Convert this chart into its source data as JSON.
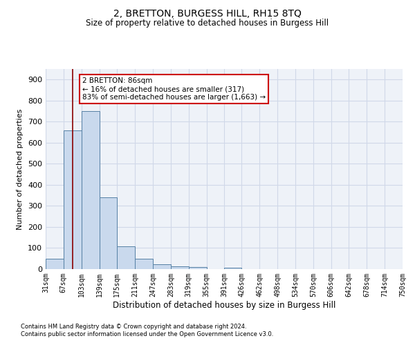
{
  "title": "2, BRETTON, BURGESS HILL, RH15 8TQ",
  "subtitle": "Size of property relative to detached houses in Burgess Hill",
  "xlabel": "Distribution of detached houses by size in Burgess Hill",
  "ylabel": "Number of detached properties",
  "footnote1": "Contains HM Land Registry data © Crown copyright and database right 2024.",
  "footnote2": "Contains public sector information licensed under the Open Government Licence v3.0.",
  "bar_edges": [
    31,
    67,
    103,
    139,
    175,
    211,
    247,
    283,
    319,
    355,
    391,
    426,
    462,
    498,
    534,
    570,
    606,
    642,
    678,
    714,
    750
  ],
  "bar_heights": [
    50,
    660,
    750,
    340,
    108,
    48,
    22,
    14,
    10,
    0,
    8,
    0,
    0,
    0,
    0,
    0,
    0,
    0,
    0,
    0
  ],
  "bar_color": "#c9d9ed",
  "bar_edge_color": "#5580a4",
  "vline_x": 86,
  "vline_color": "#8b0000",
  "ylim": [
    0,
    950
  ],
  "yticks": [
    0,
    100,
    200,
    300,
    400,
    500,
    600,
    700,
    800,
    900
  ],
  "annotation_text": "2 BRETTON: 86sqm\n← 16% of detached houses are smaller (317)\n83% of semi-detached houses are larger (1,663) →",
  "annotation_box_color": "#ffffff",
  "annotation_box_edgecolor": "#cc0000",
  "grid_color": "#d0d8e8",
  "background_color": "#eef2f8",
  "tick_labels": [
    "31sqm",
    "67sqm",
    "103sqm",
    "139sqm",
    "175sqm",
    "211sqm",
    "247sqm",
    "283sqm",
    "319sqm",
    "355sqm",
    "391sqm",
    "426sqm",
    "462sqm",
    "498sqm",
    "534sqm",
    "570sqm",
    "606sqm",
    "642sqm",
    "678sqm",
    "714sqm",
    "750sqm"
  ]
}
